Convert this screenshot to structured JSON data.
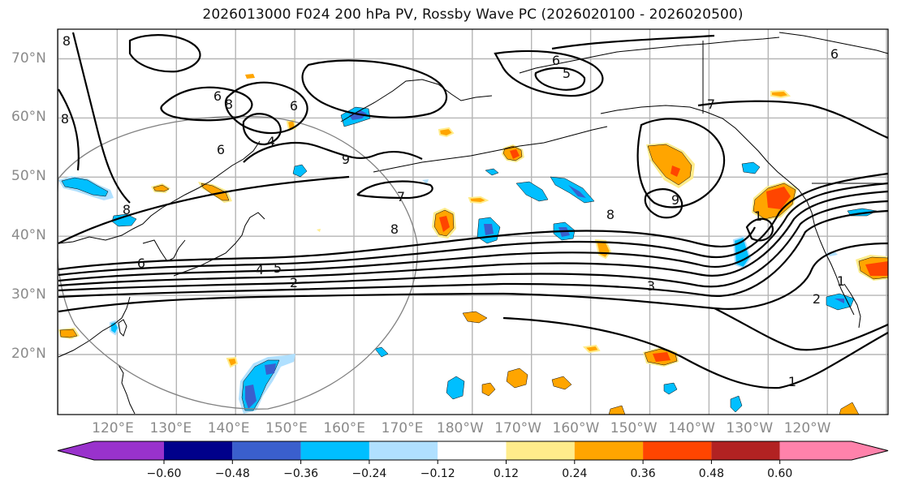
{
  "title": "2026013000 F024 200 hPa PV, Rossby Wave PC (2026020100 - 2026020500)",
  "map": {
    "projection": "Plate Carree",
    "lon_range": [
      "110°E",
      "120°W"
    ],
    "lat_range": [
      "10°N",
      "75°N"
    ],
    "y_ticks": [
      "70°N",
      "60°N",
      "50°N",
      "40°N",
      "30°N",
      "20°N"
    ],
    "x_ticks": [
      "120°E",
      "130°E",
      "140°E",
      "150°E",
      "160°E",
      "170°E",
      "180°W",
      "170°W",
      "160°W",
      "150°W",
      "140°W",
      "130°W",
      "120°W"
    ],
    "contour_field": "200 hPa PV (PVU)",
    "contour_labels": [
      "6",
      "8",
      "6",
      "4",
      "6",
      "8",
      "9",
      "7",
      "8",
      "6",
      "5",
      "7",
      "8",
      "9",
      "1",
      "6",
      "4",
      "5",
      "2",
      "3",
      "1",
      "2",
      "1",
      "6",
      "8",
      "8"
    ],
    "shaded_field": "Rossby Wave PC",
    "range_circle": "gray great-circle ring centered near 140°E, 40°N"
  },
  "colorbar": {
    "ticks": [
      "−0.60",
      "−0.48",
      "−0.36",
      "−0.24",
      "−0.12",
      "0.12",
      "0.24",
      "0.36",
      "0.48",
      "0.60"
    ],
    "colors": [
      "#9932cc",
      "#00008b",
      "#3a5fcd",
      "#00bfff",
      "#b0e0ff",
      "#ffffff",
      "#ffec8b",
      "#ffa500",
      "#ff4500",
      "#b22222",
      "#ff82ab"
    ],
    "extend": "both"
  }
}
